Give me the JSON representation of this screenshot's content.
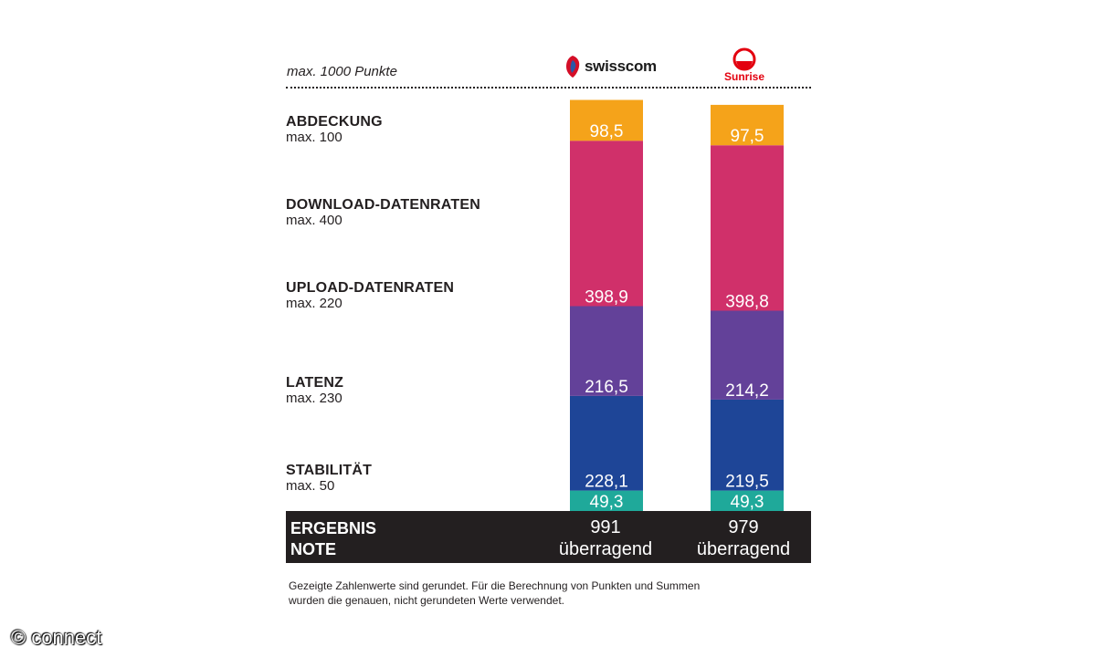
{
  "subtitle": "max. 1000 Punkte",
  "brands": {
    "swisscom": {
      "name": "swisscom",
      "color": "#d40e27"
    },
    "sunrise": {
      "name": "Sunrise",
      "color": "#e3000f"
    }
  },
  "categories": [
    {
      "title": "ABDECKUNG",
      "max": "max. 100"
    },
    {
      "title": "DOWNLOAD-DATENRATEN",
      "max": "max. 400"
    },
    {
      "title": "UPLOAD-DATENRATEN",
      "max": "max. 220"
    },
    {
      "title": "LATENZ",
      "max": "max. 230"
    },
    {
      "title": "STABILITÄT",
      "max": "max. 50"
    }
  ],
  "result": {
    "label_score": "ERGEBNIS",
    "label_grade": "NOTE",
    "swisscom": {
      "score": "991",
      "grade": "überragend"
    },
    "sunrise": {
      "score": "979",
      "grade": "überragend"
    }
  },
  "footnote": "Gezeigte Zahlenwerte sind gerundet. Für die Berechnung von Punkten und Summen wurden die genauen, nicht gerundeten Werte verwendet.",
  "watermark": "© connect",
  "chart_data": {
    "type": "bar",
    "stacked": true,
    "categories": [
      "swisscom",
      "Sunrise"
    ],
    "ylim": [
      0,
      1000
    ],
    "series": [
      {
        "name": "STABILITÄT",
        "color": "#1fa99a",
        "values": [
          49.3,
          49.3
        ],
        "labels": [
          "49,3",
          "49,3"
        ]
      },
      {
        "name": "LATENZ",
        "color": "#1e4597",
        "values": [
          228.1,
          219.5
        ],
        "labels": [
          "228,1",
          "219,5"
        ]
      },
      {
        "name": "UPLOAD-DATENRATEN",
        "color": "#634199",
        "values": [
          216.5,
          214.2
        ],
        "labels": [
          "216,5",
          "214,2"
        ]
      },
      {
        "name": "DOWNLOAD-DATENRATEN",
        "color": "#d0306a",
        "values": [
          398.9,
          398.8
        ],
        "labels": [
          "398,9",
          "398,8"
        ]
      },
      {
        "name": "ABDECKUNG",
        "color": "#f5a31a",
        "values": [
          98.5,
          97.5
        ],
        "labels": [
          "98,5",
          "97,5"
        ]
      }
    ]
  }
}
